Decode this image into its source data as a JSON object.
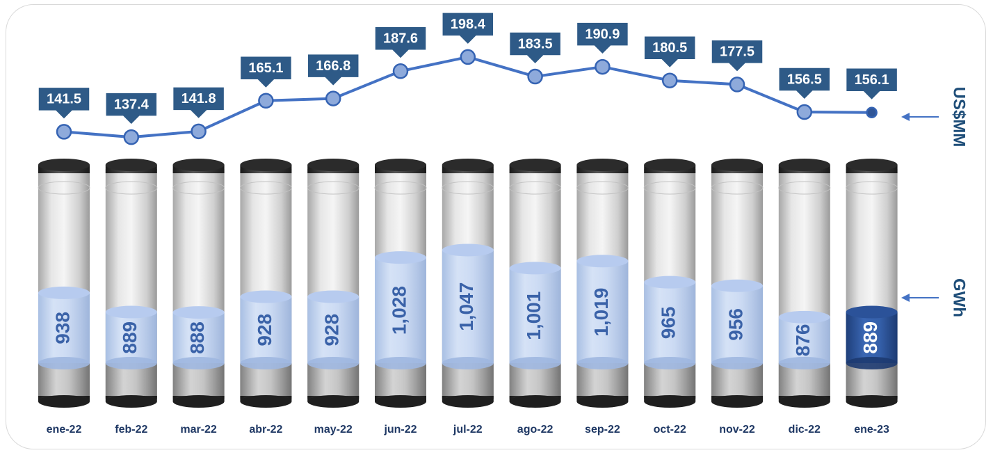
{
  "chart_data": {
    "type": "bar",
    "categories": [
      "ene-22",
      "feb-22",
      "mar-22",
      "abr-22",
      "may-22",
      "jun-22",
      "jul-22",
      "ago-22",
      "sep-22",
      "oct-22",
      "nov-22",
      "dic-22",
      "ene-23"
    ],
    "series": [
      {
        "name": "GWh",
        "type": "bar",
        "values": [
          938,
          889,
          888,
          928,
          928,
          1028,
          1047,
          1001,
          1019,
          965,
          956,
          876,
          889
        ],
        "labels": [
          "938",
          "889",
          "888",
          "928",
          "928",
          "1,028",
          "1,047",
          "1,001",
          "1,019",
          "965",
          "956",
          "876",
          "889"
        ]
      },
      {
        "name": "US$MM",
        "type": "line",
        "values": [
          141.5,
          137.4,
          141.8,
          165.1,
          166.8,
          187.6,
          198.4,
          183.5,
          190.9,
          180.5,
          177.5,
          156.5,
          156.1
        ],
        "labels": [
          "141.5",
          "137.4",
          "141.8",
          "165.1",
          "166.8",
          "187.6",
          "198.4",
          "183.5",
          "190.9",
          "180.5",
          "177.5",
          "156.5",
          "156.1"
        ]
      }
    ],
    "highlight_index": 12,
    "legend_placement": "right",
    "grid": false,
    "colors": {
      "line": "#4472c4",
      "marker_fill": "#8eaadb",
      "callout": "#2e5a87",
      "liquid": "#c9daf5",
      "liquid_highlight": "#2f5597",
      "cap": "#3a3a3a",
      "tube": "#d9d9d9",
      "label": "#1f3864"
    }
  }
}
